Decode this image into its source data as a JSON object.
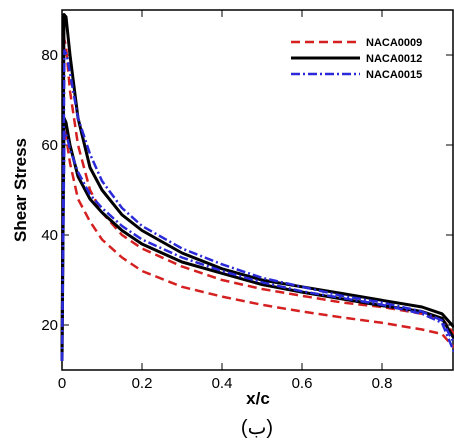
{
  "chart_data": {
    "type": "line",
    "xlabel": "x/c",
    "ylabel": "Shear Stress",
    "caption": "(ب)",
    "xlim": [
      0,
      0.98
    ],
    "ylim": [
      10,
      90
    ],
    "x_ticks": [
      "0",
      "0.2",
      "0.4",
      "0.6",
      "0.8"
    ],
    "x_tick_values": [
      0,
      0.2,
      0.4,
      0.6,
      0.8
    ],
    "y_ticks": [
      "20",
      "40",
      "60",
      "80"
    ],
    "y_tick_values": [
      20,
      40,
      60,
      80
    ],
    "legend_position": "top-right",
    "series": [
      {
        "name": "NACA0009",
        "color": "#d42020",
        "dash": "dashed",
        "upper": [
          [
            0,
            12
          ],
          [
            0.004,
            84
          ],
          [
            0.01,
            82
          ],
          [
            0.02,
            72
          ],
          [
            0.04,
            60
          ],
          [
            0.07,
            50
          ],
          [
            0.1,
            45
          ],
          [
            0.15,
            40
          ],
          [
            0.2,
            37
          ],
          [
            0.3,
            33
          ],
          [
            0.4,
            30
          ],
          [
            0.5,
            28
          ],
          [
            0.6,
            26.5
          ],
          [
            0.7,
            25
          ],
          [
            0.8,
            24
          ],
          [
            0.9,
            22.5
          ],
          [
            0.95,
            21.5
          ],
          [
            0.98,
            18
          ]
        ],
        "lower": [
          [
            0,
            12
          ],
          [
            0.004,
            64
          ],
          [
            0.01,
            62
          ],
          [
            0.02,
            56
          ],
          [
            0.04,
            48
          ],
          [
            0.07,
            43
          ],
          [
            0.1,
            39
          ],
          [
            0.15,
            35
          ],
          [
            0.2,
            32
          ],
          [
            0.3,
            28.5
          ],
          [
            0.4,
            26.3
          ],
          [
            0.5,
            24.5
          ],
          [
            0.6,
            23
          ],
          [
            0.7,
            21.7
          ],
          [
            0.8,
            20.5
          ],
          [
            0.9,
            19
          ],
          [
            0.95,
            18
          ],
          [
            0.98,
            15
          ]
        ]
      },
      {
        "name": "NACA0012",
        "color": "#000000",
        "dash": "solid",
        "upper": [
          [
            0,
            12
          ],
          [
            0.005,
            89
          ],
          [
            0.01,
            88.5
          ],
          [
            0.02,
            80
          ],
          [
            0.04,
            66
          ],
          [
            0.07,
            55
          ],
          [
            0.1,
            50
          ],
          [
            0.15,
            44.5
          ],
          [
            0.2,
            41
          ],
          [
            0.3,
            36
          ],
          [
            0.4,
            32.5
          ],
          [
            0.5,
            30
          ],
          [
            0.6,
            28.5
          ],
          [
            0.7,
            27
          ],
          [
            0.8,
            25.5
          ],
          [
            0.9,
            24
          ],
          [
            0.95,
            22.5
          ],
          [
            0.98,
            19.5
          ]
        ],
        "lower": [
          [
            0,
            12
          ],
          [
            0.005,
            66
          ],
          [
            0.01,
            65
          ],
          [
            0.02,
            60
          ],
          [
            0.04,
            53
          ],
          [
            0.07,
            48
          ],
          [
            0.1,
            45
          ],
          [
            0.15,
            41
          ],
          [
            0.2,
            38
          ],
          [
            0.3,
            34
          ],
          [
            0.4,
            31.5
          ],
          [
            0.5,
            29
          ],
          [
            0.6,
            27.3
          ],
          [
            0.7,
            25.8
          ],
          [
            0.8,
            24.3
          ],
          [
            0.9,
            23
          ],
          [
            0.95,
            21.5
          ],
          [
            0.98,
            17
          ]
        ]
      },
      {
        "name": "NACA0015",
        "color": "#2a2ad8",
        "dash": "dashdot",
        "upper": [
          [
            0,
            12
          ],
          [
            0.006,
            81
          ],
          [
            0.012,
            80
          ],
          [
            0.02,
            76
          ],
          [
            0.04,
            66
          ],
          [
            0.07,
            58
          ],
          [
            0.1,
            52
          ],
          [
            0.15,
            46
          ],
          [
            0.2,
            42
          ],
          [
            0.3,
            37
          ],
          [
            0.4,
            33.5
          ],
          [
            0.5,
            30.5
          ],
          [
            0.6,
            28.5
          ],
          [
            0.7,
            26.5
          ],
          [
            0.8,
            25
          ],
          [
            0.9,
            23
          ],
          [
            0.95,
            21
          ],
          [
            0.98,
            16
          ]
        ],
        "lower": [
          [
            0,
            12
          ],
          [
            0.006,
            63
          ],
          [
            0.012,
            62
          ],
          [
            0.02,
            59
          ],
          [
            0.04,
            54
          ],
          [
            0.07,
            49
          ],
          [
            0.1,
            46
          ],
          [
            0.15,
            42
          ],
          [
            0.2,
            39
          ],
          [
            0.3,
            35
          ],
          [
            0.4,
            32
          ],
          [
            0.5,
            29.5
          ],
          [
            0.6,
            27.5
          ],
          [
            0.7,
            26
          ],
          [
            0.8,
            24.5
          ],
          [
            0.9,
            22.5
          ],
          [
            0.95,
            20.5
          ],
          [
            0.98,
            14
          ]
        ]
      }
    ]
  }
}
